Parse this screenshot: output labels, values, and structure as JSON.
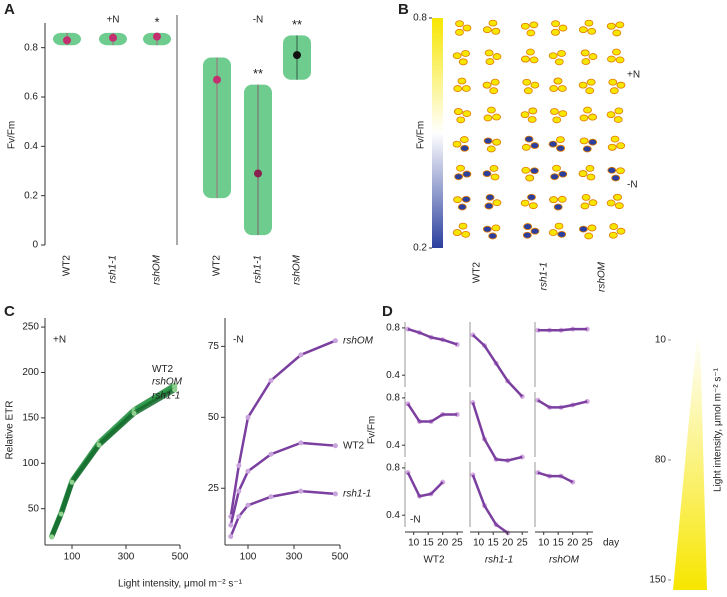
{
  "chart_data": [
    {
      "type": "strip",
      "label": "A",
      "ylabel": "Fv/Fm",
      "ylim": [
        0,
        0.9
      ],
      "yticks": [
        0,
        0.2,
        0.4,
        0.6,
        0.8
      ],
      "groups": [
        "+N",
        "-N"
      ],
      "categories": [
        "WT2",
        "rsh1-1",
        "rshOM",
        "WT2",
        "rsh1-1",
        "rshOM"
      ],
      "significance": [
        null,
        null,
        "*",
        null,
        "**",
        "**"
      ],
      "mean": [
        0.83,
        0.84,
        0.845,
        0.67,
        0.29,
        0.77
      ],
      "min": [
        0.81,
        0.81,
        0.81,
        0.19,
        0.04,
        0.67
      ],
      "max": [
        0.86,
        0.86,
        0.86,
        0.76,
        0.65,
        0.85
      ],
      "color": "#3dbb6a",
      "mean_colors": [
        "#c2306f",
        "#c2306f",
        "#c2306f",
        "#c2306f",
        "#8a2050",
        "#111111"
      ]
    },
    {
      "type": "image-grid",
      "label": "B",
      "colorbar_label": "Fv/Fm",
      "clim": [
        0.2,
        0.8
      ],
      "cticks": [
        0.2,
        0.8
      ],
      "groups": [
        "+N",
        "-N"
      ],
      "categories": [
        "WT2",
        "rsh1-1",
        "rshOM"
      ],
      "colormap": [
        "#2b3f9e",
        "#ffffff",
        "#f7e600"
      ]
    },
    {
      "type": "line",
      "label": "C",
      "title": "+N",
      "ylabel": "Relative ETR",
      "xlabel": "Light intensity, μmol m⁻² s⁻¹",
      "x": [
        25,
        60,
        100,
        200,
        330,
        480
      ],
      "xlim": [
        0,
        500
      ],
      "xticks": [
        100,
        300,
        500
      ],
      "ylim": [
        10,
        260
      ],
      "yticks": [
        50,
        100,
        150,
        200,
        250
      ],
      "series": [
        {
          "name": "WT2",
          "color": "#1e8a3c",
          "values": [
            20,
            46,
            81,
            123,
            159,
            186
          ]
        },
        {
          "name": "rshOM",
          "color": "#2a9a48",
          "values": [
            20,
            45,
            80,
            121,
            157,
            184
          ]
        },
        {
          "name": "rsh1-1",
          "color": "#156b2d",
          "values": [
            19,
            44,
            79,
            120,
            155,
            181
          ]
        }
      ]
    },
    {
      "type": "line",
      "title": "-N",
      "x": [
        25,
        60,
        100,
        200,
        330,
        480
      ],
      "xlim": [
        0,
        500
      ],
      "xticks": [
        100,
        300,
        500
      ],
      "ylim": [
        5,
        85
      ],
      "yticks": [
        25,
        50,
        75
      ],
      "series": [
        {
          "name": "rshOM",
          "color": "#7b3fa0",
          "values": [
            15,
            33,
            50,
            63,
            72,
            77
          ]
        },
        {
          "name": "WT2",
          "color": "#7b3fa0",
          "values": [
            12,
            24,
            31,
            37,
            41,
            40
          ]
        },
        {
          "name": "rsh1-1",
          "color": "#7b3fa0",
          "values": [
            8,
            15,
            19,
            22,
            24,
            23
          ]
        }
      ]
    },
    {
      "type": "small-multiples",
      "label": "D",
      "ylabel": "Fv/Fm",
      "xlabel": "day",
      "annotation": "-N",
      "x": [
        8,
        12,
        16,
        20,
        25
      ],
      "xlim": [
        7,
        27
      ],
      "xticks": [
        10,
        15,
        20,
        25
      ],
      "ylim": [
        0.3,
        0.85
      ],
      "yticks": [
        0.4,
        0.8
      ],
      "columns": [
        "WT2",
        "rsh1-1",
        "rshOM"
      ],
      "series": [
        {
          "color": "#7b3fa0",
          "values": [
            0.79,
            0.76,
            0.72,
            0.7,
            0.66
          ]
        },
        {
          "color": "#7b3fa0",
          "values": [
            0.74,
            0.65,
            0.5,
            0.35,
            0.22
          ]
        },
        {
          "color": "#7b3fa0",
          "values": [
            0.78,
            0.78,
            0.78,
            0.79,
            0.79
          ]
        },
        {
          "color": "#7b3fa0",
          "values": [
            0.75,
            0.6,
            0.6,
            0.66,
            0.66
          ]
        },
        {
          "color": "#7b3fa0",
          "values": [
            0.76,
            0.45,
            0.28,
            0.27,
            0.3
          ]
        },
        {
          "color": "#7b3fa0",
          "values": [
            0.78,
            0.72,
            0.72,
            0.74,
            0.77
          ]
        },
        {
          "color": "#7b3fa0",
          "values": [
            0.76,
            0.56,
            0.58,
            0.68,
            null
          ]
        },
        {
          "color": "#7b3fa0",
          "values": [
            0.74,
            0.48,
            0.32,
            0.25,
            null
          ]
        },
        {
          "color": "#7b3fa0",
          "values": [
            0.76,
            0.73,
            0.73,
            0.68,
            null
          ]
        }
      ],
      "colorbar_label": "Light intensity, μmol m⁻² s⁻¹",
      "clim": [
        10,
        150
      ],
      "cticks": [
        10,
        80,
        150
      ],
      "colormap": [
        "#ffffff",
        "#f7e600"
      ]
    }
  ]
}
